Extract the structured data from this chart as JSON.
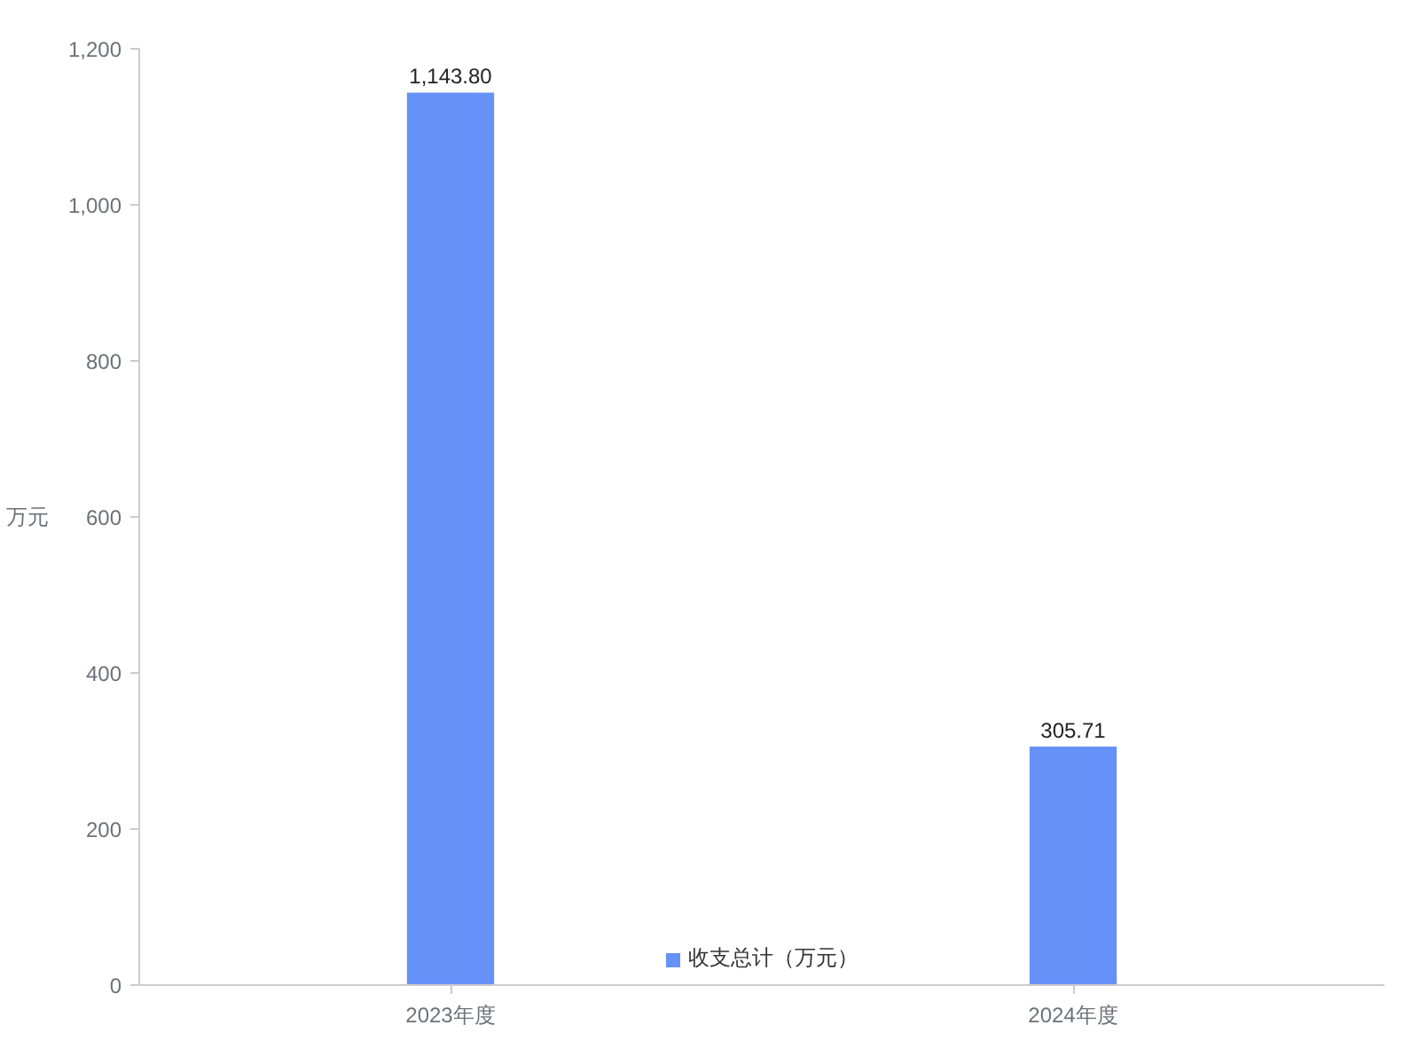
{
  "chart_data": {
    "type": "bar",
    "ylabel": "万元",
    "categories": [
      "2023年度",
      "2024年度"
    ],
    "series": [
      {
        "name": "收支总计（万元）",
        "color": "#6691f8",
        "values": [
          1143.8,
          305.71
        ],
        "value_labels": [
          "1,143.80",
          "305.71"
        ]
      }
    ],
    "ylim": [
      0,
      1200
    ],
    "yticks": [
      0,
      200,
      400,
      600,
      800,
      {
        "value": 1000,
        "label": "1,000"
      },
      {
        "value": 1200,
        "label": "1,200"
      }
    ],
    "grid": false,
    "legend": "bottom"
  }
}
